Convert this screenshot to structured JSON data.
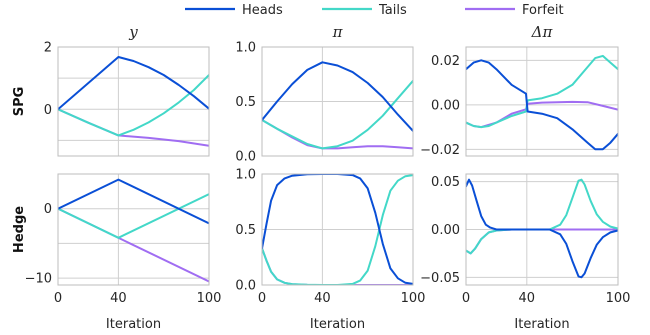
{
  "legend": [
    {
      "name": "Heads",
      "color": "#0a4fd6"
    },
    {
      "name": "Tails",
      "color": "#43d8c8"
    },
    {
      "name": "Forfeit",
      "color": "#a06df2"
    }
  ],
  "column_titles": [
    "y",
    "π",
    "Δπ"
  ],
  "row_labels": [
    "SPG",
    "Hedge"
  ],
  "xlabel": "Iteration",
  "chart_data": [
    {
      "type": "line",
      "row": "SPG",
      "title": "y",
      "xlim": [
        0,
        100
      ],
      "ylim": [
        -1.5,
        2
      ],
      "xticks": [
        0,
        40,
        100
      ],
      "yticks": [
        -1,
        0,
        1,
        2
      ],
      "ytick_labels": [
        "",
        "0",
        "",
        "2"
      ],
      "grid": true,
      "series": [
        {
          "name": "Heads",
          "x": [
            0,
            40,
            50,
            60,
            70,
            80,
            90,
            100
          ],
          "y": [
            0,
            1.68,
            1.55,
            1.35,
            1.1,
            0.78,
            0.42,
            0.02
          ]
        },
        {
          "name": "Tails",
          "x": [
            0,
            20,
            40,
            50,
            60,
            70,
            80,
            90,
            100
          ],
          "y": [
            0,
            -0.43,
            -0.84,
            -0.66,
            -0.42,
            -0.13,
            0.22,
            0.62,
            1.1
          ]
        },
        {
          "name": "Forfeit",
          "x": [
            0,
            20,
            40,
            60,
            80,
            100
          ],
          "y": [
            0,
            -0.43,
            -0.84,
            -0.92,
            -1.02,
            -1.17
          ]
        }
      ]
    },
    {
      "type": "line",
      "row": "SPG",
      "title": "π",
      "xlim": [
        0,
        100
      ],
      "ylim": [
        0,
        1.0
      ],
      "xticks": [
        0,
        40,
        100
      ],
      "yticks": [
        0,
        0.5,
        1.0
      ],
      "ytick_labels": [
        "0.0",
        "0.5",
        "1.0"
      ],
      "grid": true,
      "series": [
        {
          "name": "Heads",
          "x": [
            0,
            10,
            20,
            30,
            40,
            50,
            60,
            70,
            80,
            90,
            100
          ],
          "y": [
            0.33,
            0.5,
            0.66,
            0.79,
            0.86,
            0.83,
            0.77,
            0.67,
            0.54,
            0.38,
            0.23
          ]
        },
        {
          "name": "Tails",
          "x": [
            0,
            10,
            20,
            30,
            40,
            50,
            60,
            70,
            80,
            90,
            100
          ],
          "y": [
            0.33,
            0.25,
            0.18,
            0.11,
            0.07,
            0.09,
            0.14,
            0.24,
            0.37,
            0.53,
            0.69
          ]
        },
        {
          "name": "Forfeit",
          "x": [
            0,
            10,
            20,
            30,
            40,
            50,
            60,
            70,
            80,
            90,
            100
          ],
          "y": [
            0.33,
            0.25,
            0.17,
            0.1,
            0.07,
            0.07,
            0.08,
            0.09,
            0.09,
            0.08,
            0.07
          ]
        }
      ]
    },
    {
      "type": "line",
      "row": "SPG",
      "title": "Δπ",
      "xlim": [
        0,
        100
      ],
      "ylim": [
        -0.023,
        0.026
      ],
      "xticks": [
        0,
        40,
        100
      ],
      "yticks": [
        -0.02,
        0,
        0.02
      ],
      "ytick_labels": [
        "−0.02",
        "0.00",
        "0.02"
      ],
      "grid": true,
      "series": [
        {
          "name": "Heads",
          "x": [
            0,
            5,
            10,
            15,
            20,
            30,
            39.5,
            40.5,
            50,
            60,
            70,
            80,
            85,
            90,
            95,
            100
          ],
          "y": [
            0.016,
            0.019,
            0.02,
            0.019,
            0.016,
            0.009,
            0.005,
            -0.003,
            -0.004,
            -0.006,
            -0.011,
            -0.017,
            -0.02,
            -0.02,
            -0.017,
            -0.013
          ]
        },
        {
          "name": "Tails",
          "x": [
            0,
            5,
            10,
            15,
            20,
            30,
            39.5,
            40.5,
            50,
            60,
            70,
            80,
            85,
            90,
            95,
            100
          ],
          "y": [
            -0.008,
            -0.0095,
            -0.01,
            -0.0095,
            -0.008,
            -0.005,
            -0.003,
            0.002,
            0.003,
            0.005,
            0.009,
            0.017,
            0.021,
            0.022,
            0.019,
            0.016
          ]
        },
        {
          "name": "Forfeit",
          "x": [
            0,
            5,
            10,
            20,
            30,
            39.5,
            40.5,
            50,
            60,
            70,
            80,
            90,
            100
          ],
          "y": [
            -0.008,
            -0.0095,
            -0.01,
            -0.008,
            -0.004,
            -0.002,
            0.0005,
            0.001,
            0.0012,
            0.0013,
            0.0012,
            -0.0005,
            -0.0022
          ]
        }
      ]
    },
    {
      "type": "line",
      "row": "Hedge",
      "title": "y",
      "xlim": [
        0,
        100
      ],
      "ylim": [
        -11,
        5
      ],
      "xticks": [
        0,
        40,
        100
      ],
      "xtick_labels": [
        "0",
        "40",
        "100"
      ],
      "yticks": [
        -10,
        -5,
        0,
        5
      ],
      "ytick_labels": [
        "−10",
        "",
        "0",
        ""
      ],
      "grid": true,
      "series": [
        {
          "name": "Heads",
          "x": [
            0,
            40,
            100
          ],
          "y": [
            0,
            4.2,
            -2.1
          ]
        },
        {
          "name": "Tails",
          "x": [
            0,
            40,
            100
          ],
          "y": [
            0,
            -4.2,
            2.1
          ]
        },
        {
          "name": "Forfeit",
          "x": [
            0,
            100
          ],
          "y": [
            0,
            -10.5
          ]
        }
      ]
    },
    {
      "type": "line",
      "row": "Hedge",
      "title": "π",
      "xlim": [
        0,
        100
      ],
      "ylim": [
        0,
        1.0
      ],
      "xticks": [
        0,
        40,
        100
      ],
      "xtick_labels": [
        "0",
        "40",
        "100"
      ],
      "yticks": [
        0,
        0.5,
        1.0
      ],
      "ytick_labels": [
        "0.0",
        "0.5",
        "1.0"
      ],
      "grid": true,
      "series": [
        {
          "name": "Heads",
          "x": [
            0,
            3,
            6,
            10,
            15,
            20,
            30,
            40,
            50,
            60,
            65,
            70,
            75,
            80,
            85,
            90,
            95,
            100
          ],
          "y": [
            0.33,
            0.55,
            0.76,
            0.9,
            0.96,
            0.985,
            0.997,
            1.0,
            1.0,
            0.99,
            0.96,
            0.87,
            0.65,
            0.37,
            0.15,
            0.06,
            0.02,
            0.01
          ]
        },
        {
          "name": "Tails",
          "x": [
            0,
            3,
            6,
            10,
            15,
            20,
            30,
            40,
            50,
            60,
            65,
            70,
            75,
            80,
            85,
            90,
            95,
            100
          ],
          "y": [
            0.33,
            0.22,
            0.12,
            0.05,
            0.02,
            0.008,
            0.002,
            0.0,
            0.0,
            0.01,
            0.04,
            0.13,
            0.35,
            0.63,
            0.85,
            0.94,
            0.98,
            0.99
          ]
        },
        {
          "name": "Forfeit",
          "x": [
            0,
            3,
            6,
            10,
            15,
            20,
            30,
            40,
            60,
            80,
            100
          ],
          "y": [
            0.33,
            0.22,
            0.12,
            0.05,
            0.02,
            0.007,
            0.001,
            0.0,
            0.0,
            0.0,
            0.0
          ]
        }
      ]
    },
    {
      "type": "line",
      "row": "Hedge",
      "title": "Δπ",
      "xlim": [
        0,
        100
      ],
      "ylim": [
        -0.058,
        0.058
      ],
      "xticks": [
        0,
        40,
        100
      ],
      "xtick_labels": [
        "0",
        "40",
        "100"
      ],
      "yticks": [
        -0.05,
        0,
        0.05
      ],
      "ytick_labels": [
        "−0.05",
        "0.00",
        "0.05"
      ],
      "grid": true,
      "series": [
        {
          "name": "Heads",
          "x": [
            0,
            2,
            4,
            7,
            10,
            13,
            16,
            20,
            30,
            40,
            55,
            62,
            66,
            70,
            74,
            76,
            78,
            82,
            86,
            90,
            95,
            100
          ],
          "y": [
            0.045,
            0.052,
            0.046,
            0.03,
            0.014,
            0.005,
            0.002,
            0.0,
            0.0,
            0.0,
            0.0,
            -0.005,
            -0.015,
            -0.033,
            -0.049,
            -0.05,
            -0.046,
            -0.03,
            -0.016,
            -0.008,
            -0.003,
            -0.001
          ]
        },
        {
          "name": "Tails",
          "x": [
            0,
            3,
            6,
            10,
            15,
            20,
            30,
            40,
            55,
            62,
            66,
            70,
            74,
            76,
            78,
            82,
            86,
            90,
            95,
            100
          ],
          "y": [
            -0.022,
            -0.025,
            -0.02,
            -0.01,
            -0.003,
            -0.001,
            0.0,
            0.0,
            0.0,
            0.005,
            0.015,
            0.033,
            0.051,
            0.052,
            0.047,
            0.03,
            0.016,
            0.008,
            0.003,
            0.001
          ]
        },
        {
          "name": "Forfeit",
          "x": [
            0,
            3,
            6,
            10,
            15,
            20,
            30,
            40,
            60,
            80,
            100
          ],
          "y": [
            -0.022,
            -0.025,
            -0.02,
            -0.01,
            -0.003,
            -0.001,
            0.0,
            0.0,
            0.0,
            0.0,
            0.0
          ]
        }
      ]
    }
  ]
}
